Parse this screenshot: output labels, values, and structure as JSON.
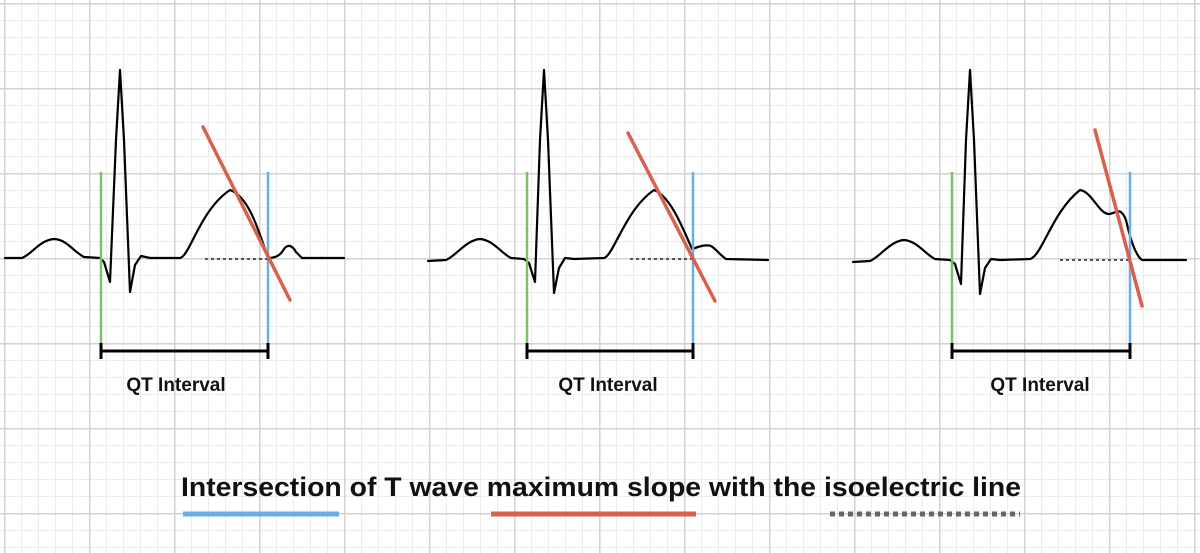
{
  "panels": [
    {
      "label": "QT Interval",
      "variant": "normal"
    },
    {
      "label": "QT Interval",
      "variant": "u-wave-merged"
    },
    {
      "label": "QT Interval",
      "variant": "notched-t-wave"
    }
  ],
  "footer": {
    "caption": "Intersection of T wave maximum slope with the isoelectric line",
    "key_lines": [
      "end-of-qt-marker",
      "maximum-slope-tangent",
      "isoelectric-line"
    ]
  },
  "colors": {
    "ecg_trace": "#000000",
    "qrs_onset_line": "#7cc06a",
    "t_wave_end_line": "#6aaee6",
    "tangent_line": "#d9604c",
    "isoelectric_line": "#555555",
    "grid_major": "#d2d2d2",
    "grid_minor": "#ececec"
  }
}
